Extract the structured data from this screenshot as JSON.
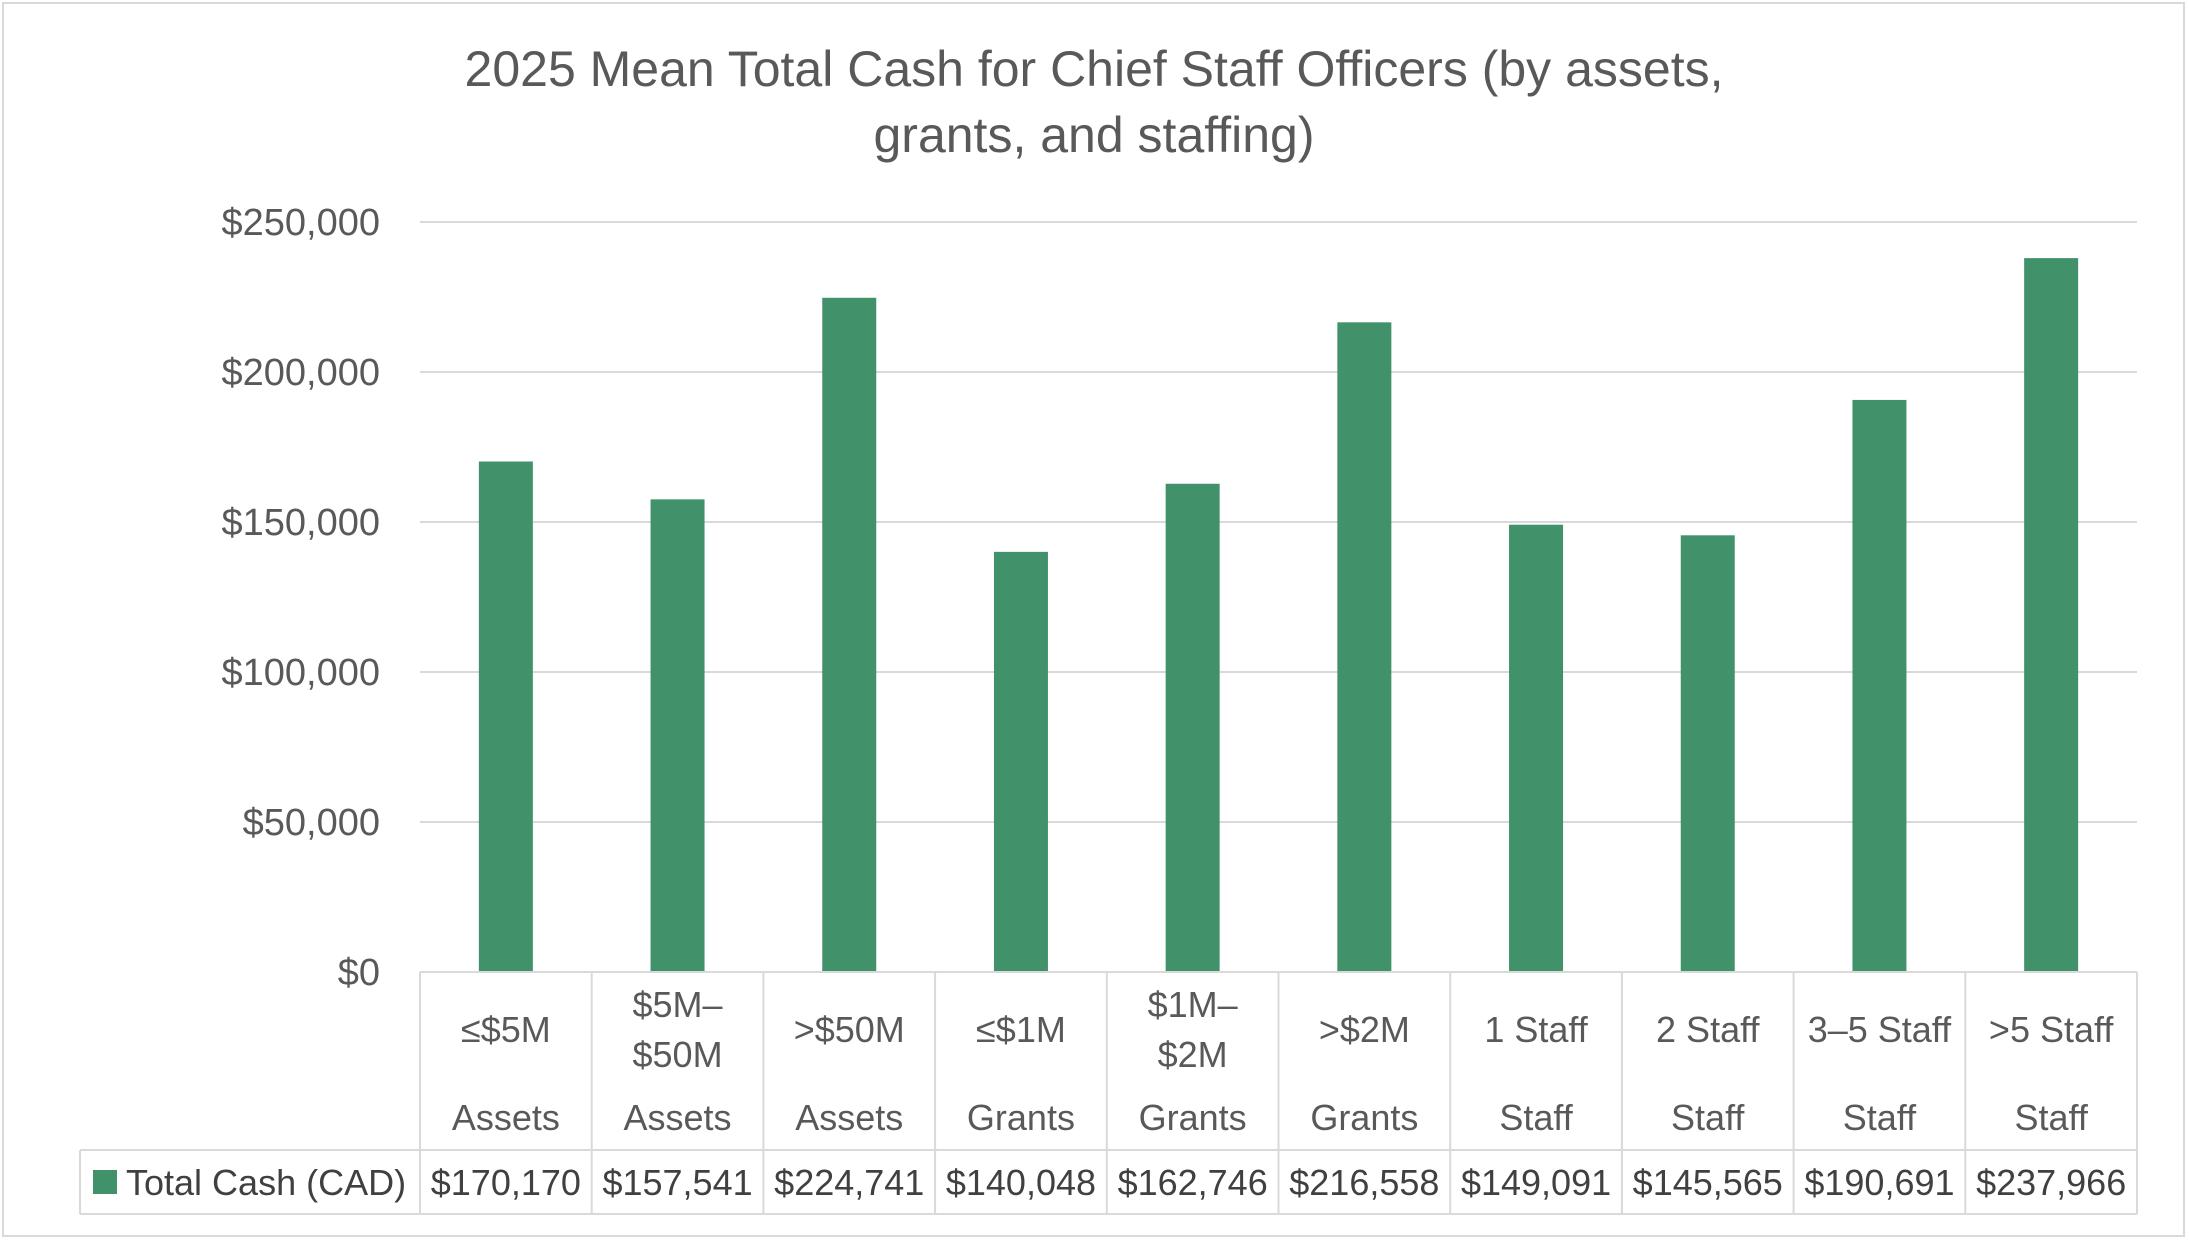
{
  "chart_data": {
    "type": "bar",
    "title_lines": [
      "2025 Mean Total Cash for Chief Staff Officers (by assets,",
      "grants, and staffing)"
    ],
    "xlabel": "",
    "ylabel": "",
    "ylim": [
      0,
      250000
    ],
    "y_ticks": [
      {
        "value": 0,
        "label": "$0"
      },
      {
        "value": 50000,
        "label": "$50,000"
      },
      {
        "value": 100000,
        "label": "$100,000"
      },
      {
        "value": 150000,
        "label": "$150,000"
      },
      {
        "value": 200000,
        "label": "$200,000"
      },
      {
        "value": 250000,
        "label": "$250,000"
      }
    ],
    "grid": true,
    "legend_position": "data-table",
    "bar_color": "#41916b",
    "categories": [
      {
        "lines": [
          "≤$5M"
        ],
        "group": "Assets"
      },
      {
        "lines": [
          "$5M–",
          "$50M"
        ],
        "group": "Assets"
      },
      {
        "lines": [
          ">$50M"
        ],
        "group": "Assets"
      },
      {
        "lines": [
          "≤$1M"
        ],
        "group": "Grants"
      },
      {
        "lines": [
          "$1M–",
          "$2M"
        ],
        "group": "Grants"
      },
      {
        "lines": [
          ">$2M"
        ],
        "group": "Grants"
      },
      {
        "lines": [
          "1 Staff"
        ],
        "group": "Staff"
      },
      {
        "lines": [
          "2 Staff"
        ],
        "group": "Staff"
      },
      {
        "lines": [
          "3–5 Staff"
        ],
        "group": "Staff"
      },
      {
        "lines": [
          ">5 Staff"
        ],
        "group": "Staff"
      }
    ],
    "series": [
      {
        "name": "Total Cash (CAD)",
        "values": [
          170170,
          157541,
          224741,
          140048,
          162746,
          216558,
          149091,
          145565,
          190691,
          237966
        ],
        "value_labels": [
          "$170,170",
          "$157,541",
          "$224,741",
          "$140,048",
          "$162,746",
          "$216,558",
          "$149,091",
          "$145,565",
          "$190,691",
          "$237,966"
        ]
      }
    ]
  }
}
